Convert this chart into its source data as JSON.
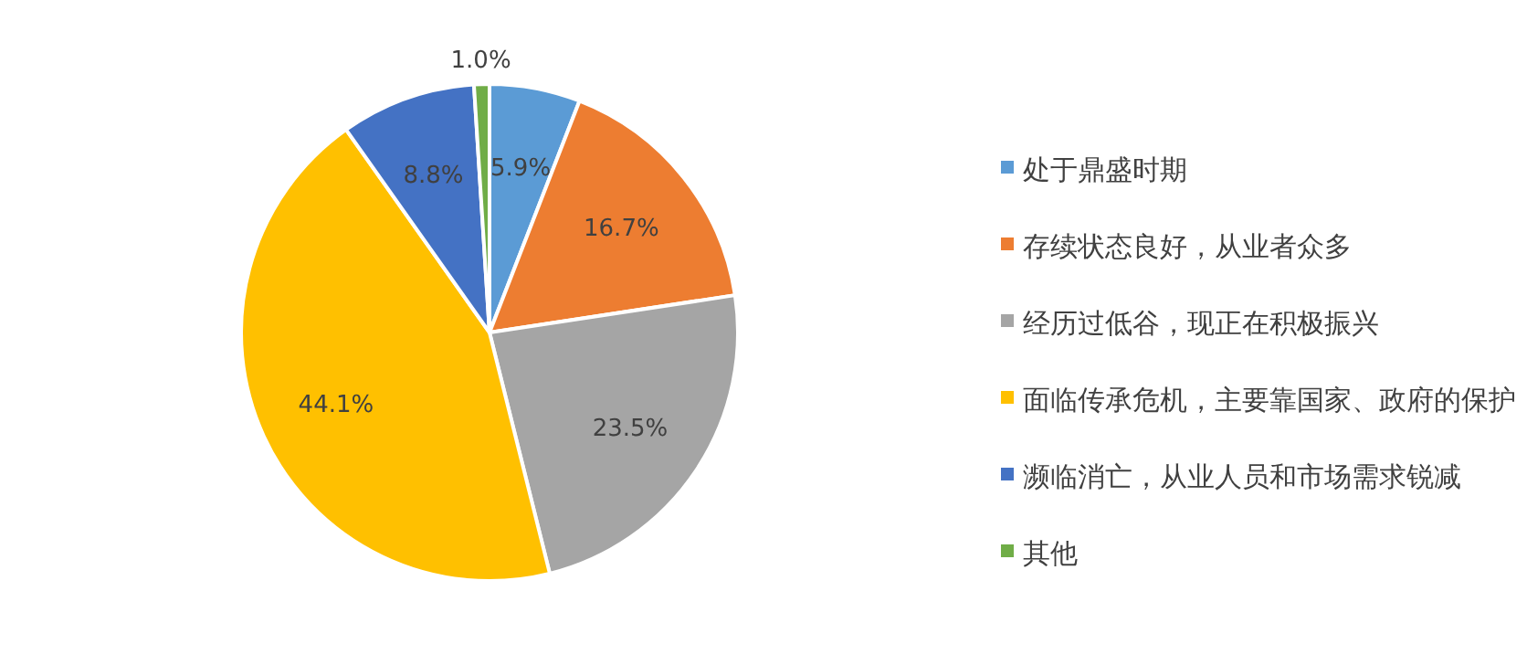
{
  "chart_data": {
    "type": "pie",
    "legend": "right",
    "categories": [
      "处于鼎盛时期",
      "存续状态良好，从业者众多",
      "经历过低谷，现正在积极振兴",
      "面临传承危机，主要靠国家、政府的保护",
      "濒临消亡，从业人员和市场需求锐减",
      "其他"
    ],
    "values": [
      5.9,
      16.7,
      23.5,
      44.1,
      8.8,
      1.0
    ],
    "value_labels": [
      "5.9%",
      "16.7%",
      "23.5%",
      "44.1%",
      "8.8%",
      "1.0%"
    ],
    "colors": [
      "#5b9bd5",
      "#ed7d31",
      "#a5a5a5",
      "#ffc000",
      "#4472c4",
      "#70ad47"
    ]
  }
}
